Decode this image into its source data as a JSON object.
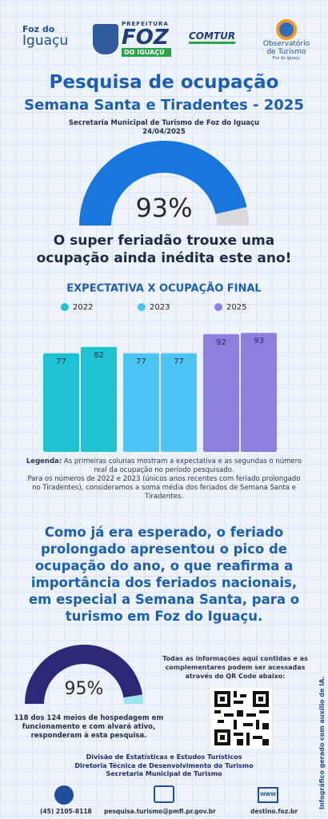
{
  "logos": {
    "foz": [
      "Foz do",
      "Iguaçu"
    ],
    "prefeitura": [
      "PREFEITURA",
      "FOZ",
      "DO IGUAÇU"
    ],
    "comtur": "COMTUR",
    "observatorio": [
      "Observatório",
      "de Turismo",
      "Foz do Iguaçu"
    ]
  },
  "header": {
    "title": "Pesquisa de ocupação",
    "title2": "Semana Santa e Tiradentes - 2025",
    "subtitle": "Secretaria Municipal de Turismo de Foz do Iguaçu",
    "date": "24/04/2025"
  },
  "headline": "O super feriadão trouxe uma ocupação ainda inédita este ano!",
  "legend_note": {
    "label": "Legenda:",
    "text": "As primeiras colunas mostram a expectativa e as segundas o número real da ocupação no período pesquisado.",
    "text2": "Para os números de 2022 e 2023 (únicos anos recentes com feriado prolongado no Tiradentes), consideramos a soma média dos feriados de Semana Santa e Tiradentes."
  },
  "statement": "Como já era esperado, o feriado prolongado apresentou o pico de ocupação do ano, o que reafirma a importância dos feriados nacionais, em especial a Semana Santa, para o turismo em Foz do Iguaçu.",
  "qr_note": "Todas as informações aqui contidas e as complementares podem ser acessadas através do QR Code abaixo:",
  "sample_note": "118 dos 124 meios de hospedagem em funcionamento e com alvará ativo, responderam à esta pesquisa.",
  "footer": {
    "lines": [
      "Divisão de Estatísticas e Estudos Turísticos",
      "Diretoria Técnica de Desenvolvimento do Turismo",
      "Secretaria Municipal de Turismo"
    ],
    "phone": "(45) 2105-8118",
    "email": "pesquisa.turismo@pmfi.pr.gov.br",
    "site": "destino.foz.br",
    "www": "WWW",
    "ai_note": "Infográfico gerado com auxílio de IA."
  },
  "chart_data": [
    {
      "type": "gauge",
      "values": [
        93
      ],
      "value_labels": [
        "93%"
      ],
      "ylim": [
        0,
        100
      ],
      "color": "#1877dc",
      "track_color": "#d9d9de"
    },
    {
      "type": "bar",
      "title": "EXPECTATIVA X OCUPAÇÃO FINAL",
      "series": [
        {
          "name": "2022",
          "color": "#1ec3d3",
          "values": [
            77,
            82
          ]
        },
        {
          "name": "2023",
          "color": "#4cc4f4",
          "values": [
            77,
            77
          ]
        },
        {
          "name": "2025",
          "color": "#8b7fe0",
          "values": [
            92,
            93
          ]
        }
      ],
      "ylim": [
        0,
        100
      ]
    },
    {
      "type": "gauge",
      "values": [
        95
      ],
      "value_labels": [
        "95%"
      ],
      "ylim": [
        0,
        100
      ],
      "color": "#2c2a78",
      "track_color": "#9fe3ec"
    }
  ]
}
